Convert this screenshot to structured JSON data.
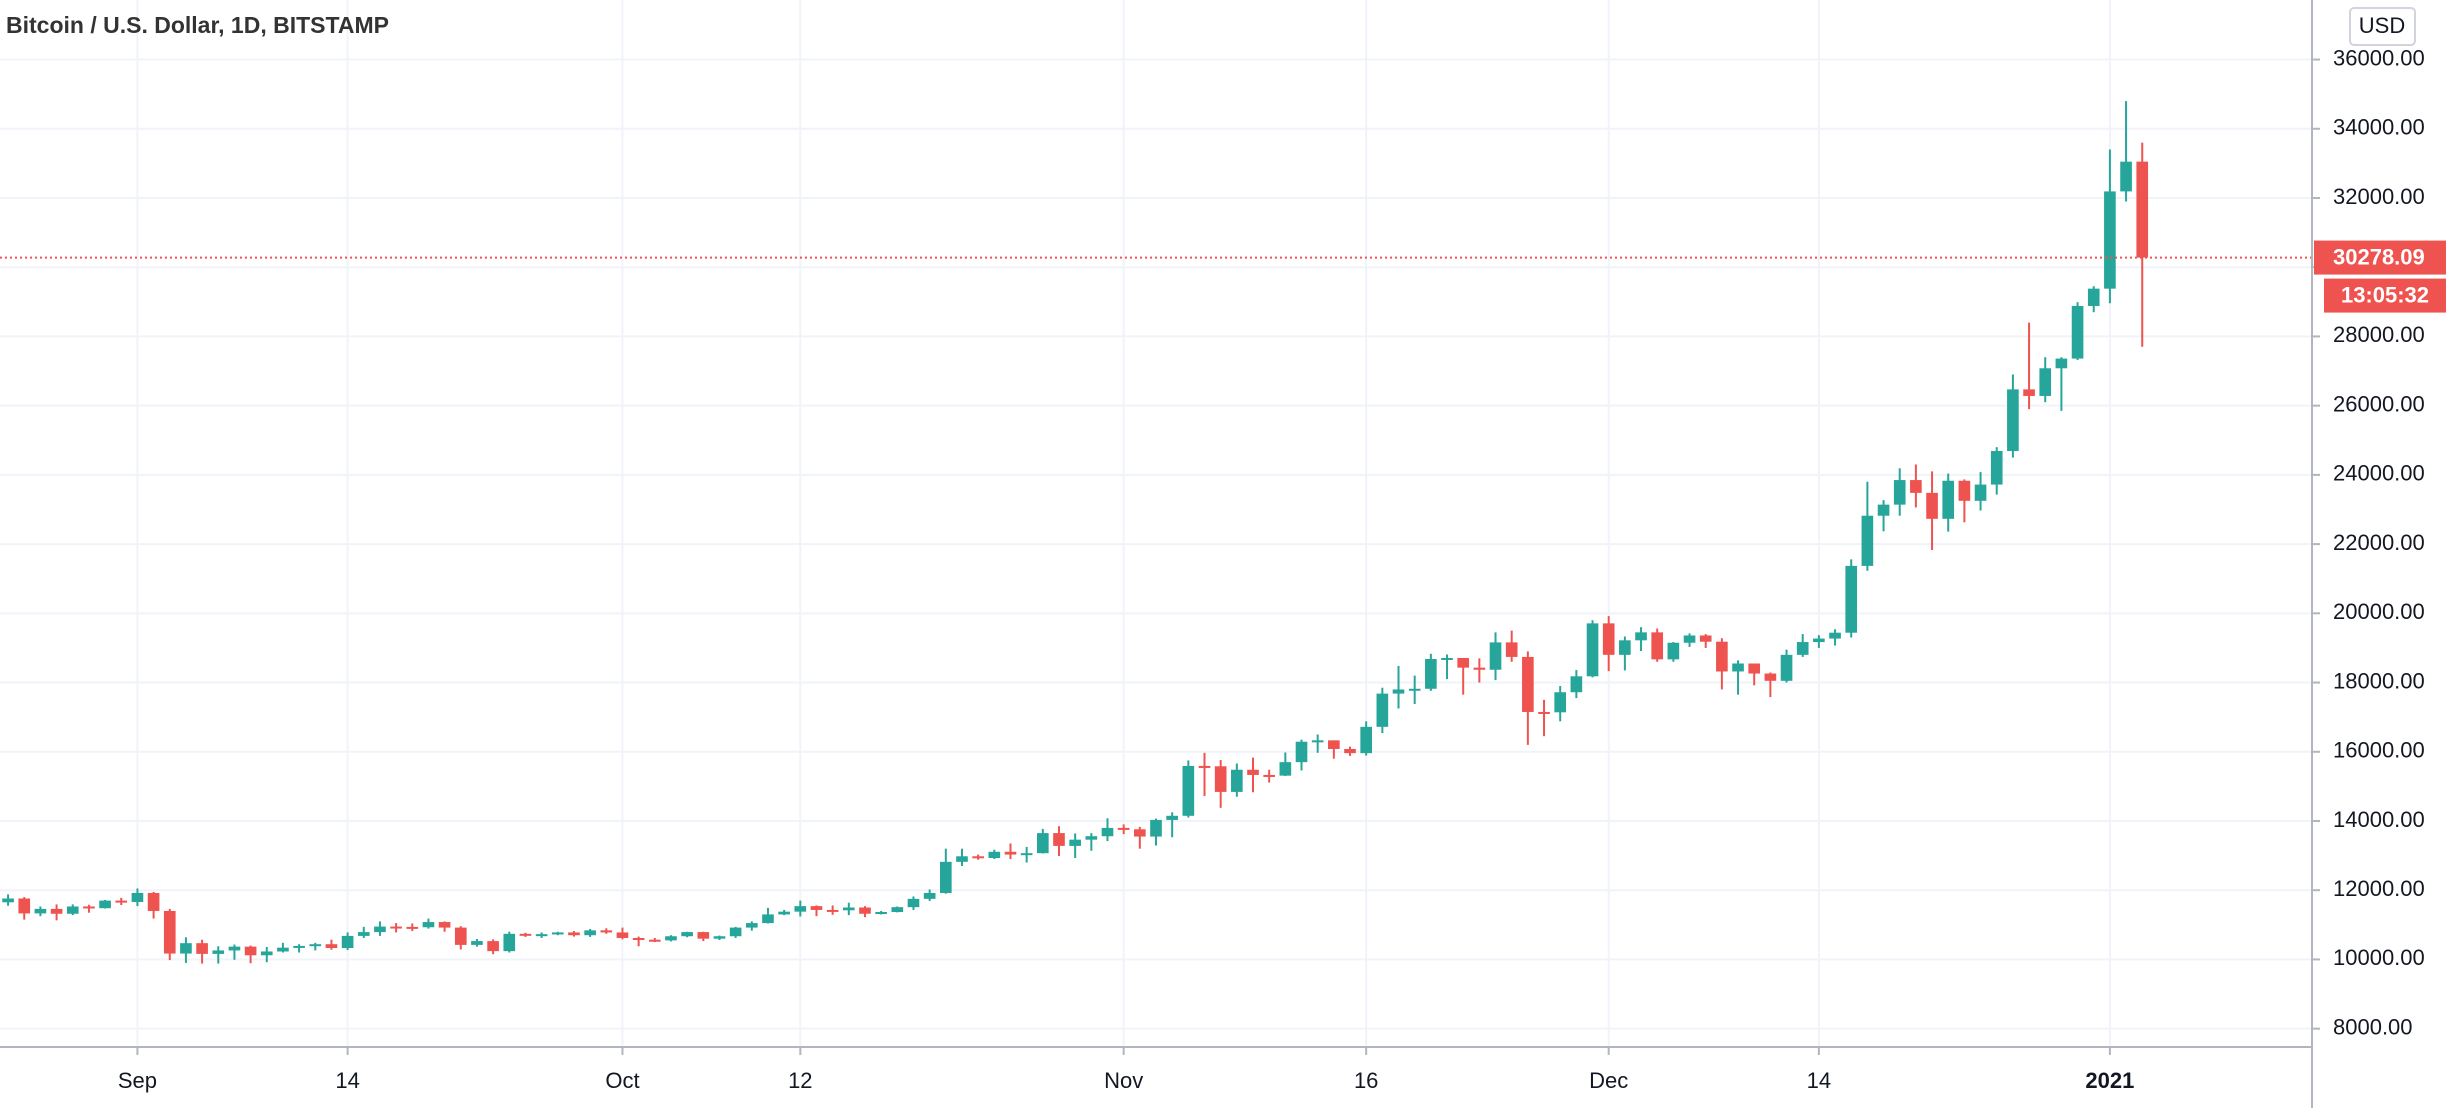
{
  "chart_data": {
    "type": "candlestick",
    "title": "Bitcoin / U.S. Dollar, 1D, BITSTAMP",
    "currency": "USD",
    "countdown": "13:05:32",
    "xlim": [
      -0.5,
      142.5
    ],
    "ylim": [
      7470,
      37720
    ],
    "xticks": [
      {
        "value": 8,
        "label": "Sep"
      },
      {
        "value": 21,
        "label": "14"
      },
      {
        "value": 38,
        "label": "Oct"
      },
      {
        "value": 49,
        "label": "12"
      },
      {
        "value": 69,
        "label": "Nov"
      },
      {
        "value": 84,
        "label": "16"
      },
      {
        "value": 99,
        "label": "Dec"
      },
      {
        "value": 112,
        "label": "14"
      },
      {
        "value": 130,
        "label": "2021"
      }
    ],
    "yticks": [
      {
        "value": 8000,
        "label": "8000.00"
      },
      {
        "value": 10000,
        "label": "10000.00"
      },
      {
        "value": 12000,
        "label": "12000.00"
      },
      {
        "value": 14000,
        "label": "14000.00"
      },
      {
        "value": 16000,
        "label": "16000.00"
      },
      {
        "value": 18000,
        "label": "18000.00"
      },
      {
        "value": 20000,
        "label": "20000.00"
      },
      {
        "value": 22000,
        "label": "22000.00"
      },
      {
        "value": 24000,
        "label": "24000.00"
      },
      {
        "value": 26000,
        "label": "26000.00"
      },
      {
        "value": 28000,
        "label": "28000.00"
      },
      {
        "value": 30000,
        "label": "30000.00"
      },
      {
        "value": 32000,
        "label": "32000.00"
      },
      {
        "value": 34000,
        "label": "34000.00"
      },
      {
        "value": 36000,
        "label": "36000.00"
      }
    ],
    "grid": true,
    "series": [
      {
        "up_color": "#26a69a",
        "down_color": "#ef5350",
        "open": [
          11650,
          11760,
          11330,
          11460,
          11320,
          11530,
          11480,
          11700,
          11660,
          11920,
          11400,
          10170,
          10470,
          10160,
          10260,
          10370,
          10120,
          10230,
          10340,
          10390,
          10440,
          10330,
          10680,
          10790,
          10950,
          10940,
          10930,
          11080,
          10920,
          10420,
          10530,
          10240,
          10740,
          10690,
          10730,
          10780,
          10700,
          10840,
          10780,
          10620,
          10570,
          10550,
          10670,
          10790,
          10600,
          10670,
          10920,
          11050,
          11300,
          11380,
          11540,
          11430,
          11420,
          11500,
          11320,
          11370,
          11510,
          11750,
          11920,
          12820,
          12980,
          12930,
          13110,
          13030,
          13070,
          13650,
          13280,
          13460,
          13560,
          13800,
          13760,
          13550,
          14030,
          14150,
          15590,
          15580,
          14840,
          15480,
          15330,
          15310,
          15700,
          16290,
          16330,
          16080,
          15960,
          16720,
          17680,
          17800,
          17820,
          18680,
          18710,
          18430,
          18370,
          19160,
          18740,
          17150,
          17140,
          17720,
          18180,
          19710,
          18800,
          19220,
          19450,
          18670,
          19150,
          19360,
          19180,
          18320,
          18550,
          18260,
          18050,
          18800,
          19170,
          19270,
          19440,
          21370,
          22820,
          23140,
          23850,
          23480,
          22730,
          23830,
          23250,
          23720,
          24690,
          26470,
          26280,
          27080,
          27360,
          28880,
          29380,
          32190,
          33050
        ],
        "high": [
          11880,
          11800,
          11530,
          11590,
          11590,
          11580,
          11720,
          11780,
          12050,
          11950,
          11460,
          10640,
          10570,
          10380,
          10430,
          10400,
          10360,
          10480,
          10440,
          10480,
          10570,
          10780,
          10940,
          11100,
          11050,
          11040,
          11180,
          11100,
          10960,
          10590,
          10580,
          10800,
          10770,
          10780,
          10800,
          10820,
          10880,
          10900,
          10920,
          10660,
          10620,
          10700,
          10800,
          10800,
          10690,
          10940,
          11100,
          11490,
          11430,
          11700,
          11560,
          11560,
          11640,
          11540,
          11400,
          11530,
          11820,
          12020,
          13200,
          13200,
          13030,
          13170,
          13350,
          13250,
          13770,
          13850,
          13640,
          13650,
          14080,
          13900,
          13830,
          14070,
          14250,
          15750,
          15970,
          15760,
          15660,
          15830,
          15480,
          15980,
          16350,
          16500,
          16330,
          16150,
          16880,
          17850,
          18480,
          18200,
          18830,
          18810,
          18710,
          18700,
          19450,
          19500,
          18900,
          17500,
          17900,
          18360,
          19800,
          19920,
          19330,
          19600,
          19560,
          19170,
          19420,
          19400,
          19280,
          18640,
          18550,
          18290,
          18950,
          19400,
          19370,
          19540,
          21560,
          23800,
          23270,
          24190,
          24300,
          24100,
          24040,
          23870,
          24080,
          24800,
          26900,
          28400,
          27400,
          27400,
          28990,
          29450,
          33400,
          34800,
          33600
        ],
        "low": [
          11550,
          11150,
          11250,
          11130,
          11280,
          11350,
          11470,
          11570,
          11540,
          11180,
          9980,
          9900,
          9880,
          9880,
          9990,
          9890,
          9920,
          10200,
          10200,
          10260,
          10280,
          10270,
          10620,
          10680,
          10780,
          10820,
          10890,
          10800,
          10290,
          10370,
          10150,
          10200,
          10650,
          10620,
          10700,
          10660,
          10650,
          10740,
          10580,
          10380,
          10500,
          10520,
          10640,
          10530,
          10560,
          10620,
          10830,
          11040,
          11280,
          11240,
          11250,
          11290,
          11280,
          11220,
          11300,
          11360,
          11430,
          11690,
          11900,
          12700,
          12880,
          12900,
          12900,
          12800,
          13060,
          12990,
          12930,
          13140,
          13420,
          13620,
          13200,
          13290,
          13530,
          14100,
          14720,
          14380,
          14700,
          14830,
          15110,
          15300,
          15460,
          15970,
          15800,
          15880,
          15890,
          16540,
          17250,
          17380,
          17760,
          18100,
          17650,
          18000,
          18070,
          18600,
          16200,
          16450,
          16880,
          17550,
          18150,
          18330,
          18350,
          18910,
          18600,
          18600,
          19030,
          19000,
          17800,
          17650,
          17920,
          17580,
          18000,
          18740,
          19000,
          19070,
          19300,
          21230,
          22370,
          22820,
          23060,
          21830,
          22360,
          22630,
          22970,
          23430,
          24500,
          25900,
          26100,
          25850,
          27320,
          28700,
          28960,
          31900,
          27700
        ],
        "close": [
          11760,
          11330,
          11460,
          11320,
          11530,
          11480,
          11700,
          11660,
          11920,
          11400,
          10170,
          10470,
          10160,
          10260,
          10370,
          10120,
          10230,
          10340,
          10390,
          10440,
          10330,
          10680,
          10790,
          10950,
          10940,
          10930,
          11080,
          10920,
          10420,
          10530,
          10240,
          10740,
          10690,
          10730,
          10780,
          10700,
          10840,
          10780,
          10620,
          10570,
          10550,
          10670,
          10790,
          10600,
          10670,
          10920,
          11050,
          11300,
          11380,
          11540,
          11430,
          11420,
          11500,
          11320,
          11370,
          11510,
          11750,
          11920,
          12820,
          12980,
          12930,
          13110,
          13030,
          13070,
          13650,
          13280,
          13460,
          13560,
          13800,
          13760,
          13550,
          14030,
          14150,
          15590,
          15580,
          14840,
          15480,
          15330,
          15310,
          15700,
          16290,
          16330,
          16080,
          15960,
          16720,
          17680,
          17800,
          17820,
          18680,
          18710,
          18430,
          18370,
          19160,
          18740,
          17150,
          17140,
          17720,
          18180,
          19710,
          18800,
          19220,
          19450,
          18670,
          19150,
          19360,
          19180,
          18320,
          18550,
          18260,
          18050,
          18800,
          19170,
          19270,
          19440,
          21370,
          22820,
          23140,
          23850,
          23480,
          22730,
          23830,
          23250,
          23720,
          24690,
          26470,
          26280,
          27080,
          27360,
          28880,
          29380,
          32190,
          33050,
          30278.09
        ]
      }
    ]
  }
}
